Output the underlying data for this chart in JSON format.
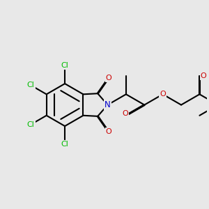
{
  "background_color": "#e8e8e8",
  "bond_color": "#000000",
  "bond_width": 1.5,
  "atom_colors": {
    "Cl": "#00bb00",
    "N": "#0000cc",
    "O": "#cc0000",
    "C": "#000000"
  },
  "font_size": 8.0
}
